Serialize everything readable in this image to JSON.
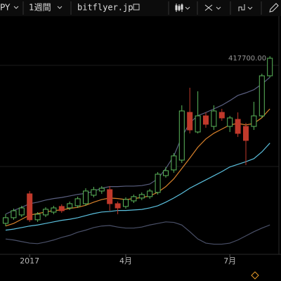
{
  "toolbar": {
    "symbol": "PY",
    "interval": "1週間",
    "source": "bitflyer.jp"
  },
  "chart_data": {
    "type": "candlestick",
    "categories": [
      null,
      null,
      null,
      "2017",
      null,
      null,
      null,
      null,
      null,
      null,
      null,
      null,
      null,
      null,
      null,
      "4月",
      null,
      null,
      null,
      null,
      null,
      null,
      null,
      null,
      null,
      null,
      null,
      null,
      "7月",
      null,
      null,
      null,
      null,
      null
    ],
    "open": [
      99200,
      110000,
      115400,
      156100,
      106000,
      115400,
      120800,
      131700,
      128900,
      133000,
      137100,
      153400,
      161500,
      164200,
      137100,
      131700,
      142500,
      148000,
      150700,
      158800,
      191300,
      202200,
      221100,
      313300,
      275400,
      306500,
      286200,
      313300,
      286200,
      299800,
      286200,
      286200,
      306500,
      383800
    ],
    "high": [
      116800,
      127600,
      133000,
      161500,
      120800,
      130300,
      133000,
      135800,
      141200,
      150700,
      166900,
      169600,
      171000,
      171000,
      141200,
      149300,
      154700,
      158800,
      165600,
      198100,
      207600,
      234700,
      326900,
      360800,
      354000,
      313300,
      326900,
      320100,
      306500,
      313300,
      293000,
      333700,
      387900,
      421800
    ],
    "low": [
      93700,
      106000,
      111300,
      101900,
      101900,
      111300,
      116800,
      119500,
      124900,
      128900,
      133000,
      149300,
      156100,
      123500,
      116800,
      127600,
      138400,
      143900,
      146600,
      154700,
      187300,
      196800,
      215700,
      272700,
      272700,
      283500,
      279400,
      297000,
      275400,
      265900,
      211700,
      279400,
      302500,
      381100
    ],
    "close": [
      110000,
      123500,
      128900,
      106000,
      116800,
      126300,
      128900,
      123500,
      137100,
      146600,
      161500,
      164200,
      166900,
      137100,
      128900,
      145200,
      150700,
      154700,
      161500,
      194000,
      200800,
      229300,
      316000,
      279400,
      306500,
      290300,
      316000,
      302500,
      302500,
      272700,
      259100,
      306500,
      383800,
      417700
    ],
    "up_color": "#5cb85c",
    "down_color": "#c0392b",
    "lines": [
      {
        "color": "#d9822b",
        "values": [
          94,
          99,
          107,
          115,
          118,
          121,
          124,
          125,
          128,
          130,
          134,
          140,
          145,
          148,
          147,
          145,
          147,
          149,
          152,
          159,
          170,
          185,
          205,
          225,
          246,
          262,
          273,
          281,
          289,
          292,
          289,
          292,
          303,
          320
        ]
      },
      {
        "color": "#5bc0de",
        "values": [
          86,
          88,
          91,
          94,
          96,
          99,
          102,
          105,
          107,
          110,
          114,
          118,
          121,
          122,
          124,
          124,
          125,
          126,
          129,
          133,
          140,
          148,
          157,
          167,
          175,
          183,
          191,
          199,
          208,
          213,
          218,
          224,
          237,
          254
        ]
      },
      {
        "color": "#5a5f80",
        "values": [
          117,
          124,
          130,
          137,
          140,
          144,
          147,
          149,
          152,
          155,
          157,
          161,
          167,
          170,
          170,
          171,
          171,
          172,
          175,
          185,
          205,
          229,
          266,
          293,
          307,
          313,
          320,
          327,
          336,
          346,
          351,
          357,
          368,
          381
        ]
      },
      {
        "color": "#4a5068",
        "values": [
          69,
          67,
          64,
          61,
          60,
          63,
          67,
          72,
          76,
          82,
          86,
          91,
          94,
          95,
          92,
          90,
          90,
          92,
          96,
          99,
          102,
          101,
          96,
          83,
          69,
          61,
          59,
          59,
          61,
          67,
          75,
          83,
          90,
          96
        ]
      }
    ],
    "line_unit": 1000,
    "ylim": [
      15000,
      503000
    ],
    "last_price_label": "417700.00"
  }
}
